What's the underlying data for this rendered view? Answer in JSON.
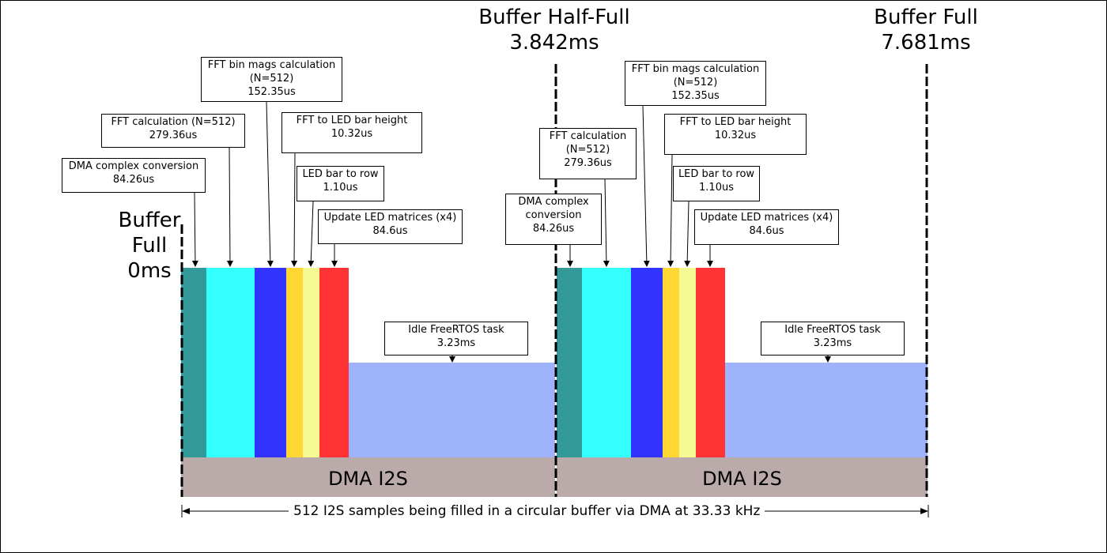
{
  "markers": {
    "start": {
      "line1": "Buffer",
      "line2": "Full",
      "line3": "0ms"
    },
    "half": {
      "line1": "Buffer Half-Full",
      "line2": "3.842ms"
    },
    "full": {
      "line1": "Buffer Full",
      "line2": "7.681ms"
    }
  },
  "tasks": [
    {
      "name": "DMA complex conversion",
      "duration": "84.26us",
      "color": "#339999"
    },
    {
      "name": "FFT calculation (N=512)",
      "duration": "279.36us",
      "color": "#33ffff"
    },
    {
      "name": "FFT bin mags calculation (N=512)",
      "duration": "152.35us",
      "color": "#3333ff"
    },
    {
      "name": "FFT to LED bar height",
      "duration": "10.32us",
      "color": "#ffd633"
    },
    {
      "name": "LED bar to row",
      "duration": "1.10us",
      "color": "#f4f994"
    },
    {
      "name": "Update LED matrices (x4)",
      "duration": "84.6us",
      "color": "#ff3333"
    }
  ],
  "cycle1": {
    "dma_conv": {
      "line1": "DMA complex conversion",
      "line2": "84.26us"
    },
    "fft_calc": {
      "line1": "FFT calculation (N=512)",
      "line2": "279.36us"
    },
    "fft_bin": {
      "line1": "FFT bin mags calculation",
      "line2": "(N=512)",
      "line3": "152.35us"
    },
    "fft_led": {
      "line1": "FFT to LED bar height",
      "line2": "10.32us"
    },
    "led_row": {
      "line1": "LED bar to row",
      "line2": "1.10us"
    },
    "update": {
      "line1": "Update LED matrices (x4)",
      "line2": "84.6us"
    },
    "idle": {
      "line1": "Idle FreeRTOS task",
      "line2": "3.23ms"
    },
    "dma_i2s": "DMA I2S"
  },
  "cycle2": {
    "dma_conv": {
      "line1": "DMA complex",
      "line2": "conversion",
      "line3": "84.26us"
    },
    "fft_calc": {
      "line1": "FFT calculation",
      "line2": "(N=512)",
      "line3": "279.36us"
    },
    "fft_bin": {
      "line1": "FFT bin mags calculation",
      "line2": "(N=512)",
      "line3": "152.35us"
    },
    "fft_led": {
      "line1": "FFT to LED bar height",
      "line2": "10.32us"
    },
    "led_row": {
      "line1": "LED bar to row",
      "line2": "1.10us"
    },
    "update": {
      "line1": "Update LED matrices (x4)",
      "line2": "84.6us"
    },
    "idle": {
      "line1": "Idle FreeRTOS task",
      "line2": "3.23ms"
    },
    "dma_i2s": "DMA I2S"
  },
  "colors": {
    "idle": "#9eb3fb",
    "dma_i2s": "#baaaa9"
  },
  "caption": "512 I2S samples being filled in a circular buffer via DMA at 33.33 kHz"
}
